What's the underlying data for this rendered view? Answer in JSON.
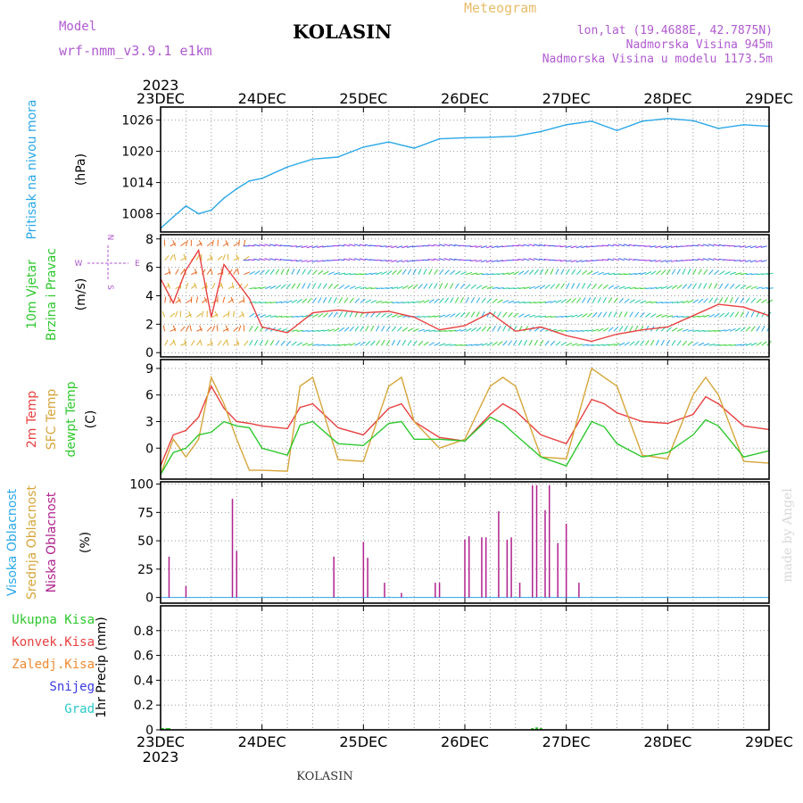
{
  "header": {
    "model_label": "Model",
    "model_name": "wrf-nmm_v3.9.1 e1km",
    "station": "KOLASIN",
    "product": "Meteogram",
    "coords": "lon,lat (19.4688E, 42.7875N)",
    "elevation": "Nadmorska Visina 945m",
    "model_elevation": "Nadmorska Visina u modelu 1173.5m",
    "year": "2023",
    "footer_station": "KOLASIN",
    "credit": "made by Angel"
  },
  "dates": [
    "23DEC",
    "24DEC",
    "25DEC",
    "26DEC",
    "27DEC",
    "28DEC",
    "29DEC"
  ],
  "chart_data": [
    {
      "type": "line",
      "panel": "pressure",
      "ylabel": [
        "Pritisak na nivou mora",
        "(hPa)"
      ],
      "ylim": [
        1004.5,
        1028.5
      ],
      "yticks": [
        1008,
        1014,
        1020,
        1026
      ],
      "grid": true,
      "color": "#2aa8e8",
      "series": [
        {
          "x": [
            0,
            3,
            6,
            9,
            12,
            15,
            18,
            21,
            24,
            30,
            36,
            42,
            48,
            54,
            60,
            66,
            72,
            78,
            84,
            90,
            96,
            102,
            108,
            114,
            120,
            126,
            132,
            138,
            144
          ],
          "values": [
            1005.2,
            1007.4,
            1009.5,
            1008.0,
            1008.7,
            1011.0,
            1012.8,
            1014.3,
            1014.8,
            1017.0,
            1018.5,
            1018.9,
            1020.8,
            1021.8,
            1020.6,
            1022.4,
            1022.6,
            1022.7,
            1022.9,
            1023.8,
            1025.1,
            1025.8,
            1024.0,
            1025.8,
            1026.3,
            1025.9,
            1024.4,
            1025.1,
            1024.8
          ]
        }
      ]
    },
    {
      "type": "line",
      "panel": "wind",
      "ylabel": [
        "10m Vjetar",
        "Brzina i Pravac",
        "(m/s)"
      ],
      "ylim": [
        -0.3,
        8.3
      ],
      "yticks": [
        0,
        2,
        4,
        6,
        8
      ],
      "grid": true,
      "compass": [
        "W",
        "E",
        "N",
        "S"
      ],
      "series": [
        {
          "name": "speed",
          "color": "#e84040",
          "x": [
            0,
            3,
            6,
            9,
            12,
            15,
            18,
            21,
            24,
            30,
            36,
            42,
            48,
            54,
            60,
            66,
            72,
            78,
            84,
            90,
            96,
            102,
            108,
            114,
            120,
            126,
            132,
            138,
            144
          ],
          "values": [
            5.2,
            3.5,
            5.8,
            7.2,
            2.5,
            6.2,
            5.0,
            3.8,
            1.8,
            1.4,
            2.8,
            3.0,
            2.8,
            2.9,
            2.5,
            1.6,
            1.9,
            2.8,
            1.5,
            1.8,
            1.2,
            0.8,
            1.3,
            1.6,
            1.8,
            2.6,
            3.4,
            3.2,
            2.6
          ]
        }
      ]
    },
    {
      "type": "line",
      "panel": "temperature",
      "ylabel": [
        "2m Temp",
        "SFC Temp",
        "dewpt Temp",
        "(C)"
      ],
      "ylim": [
        -3.5,
        10
      ],
      "yticks": [
        0,
        3,
        6,
        9
      ],
      "grid": true,
      "x": [
        0,
        3,
        6,
        9,
        12,
        15,
        18,
        21,
        24,
        30,
        33,
        36,
        42,
        48,
        54,
        57,
        60,
        66,
        72,
        78,
        81,
        84,
        90,
        96,
        102,
        105,
        108,
        114,
        120,
        126,
        129,
        132,
        138,
        144
      ],
      "series": [
        {
          "name": "2m Temp",
          "color": "#e84040",
          "values": [
            -2.0,
            1.5,
            2.0,
            3.5,
            7.0,
            4.5,
            3.0,
            2.8,
            2.5,
            2.2,
            4.6,
            5.0,
            2.3,
            1.5,
            4.5,
            5.0,
            3.0,
            1.2,
            0.8,
            3.8,
            5.0,
            4.2,
            1.5,
            0.5,
            5.5,
            5.0,
            4.0,
            3.0,
            2.8,
            3.8,
            5.8,
            5.0,
            2.5,
            2.1
          ]
        },
        {
          "name": "SFC Temp",
          "color": "#d6a53a",
          "values": [
            -3.0,
            1.0,
            -1.0,
            1.0,
            8.0,
            5.0,
            1.0,
            -2.5,
            -2.5,
            -2.6,
            7.0,
            8.0,
            -1.3,
            -1.5,
            7.0,
            8.0,
            3.0,
            0.0,
            1.0,
            7.0,
            8.0,
            7.0,
            -1.0,
            -1.2,
            9.0,
            8.0,
            7.0,
            -0.8,
            -1.2,
            6.0,
            8.0,
            6.0,
            -1.5,
            -1.7
          ]
        },
        {
          "name": "dewpt Temp",
          "color": "#2ec82e",
          "values": [
            -3.0,
            -0.5,
            0.0,
            1.5,
            1.8,
            3.0,
            2.5,
            2.3,
            0.0,
            -0.8,
            2.6,
            3.0,
            0.5,
            0.3,
            2.8,
            3.0,
            1.0,
            1.0,
            0.8,
            3.5,
            2.8,
            1.5,
            -1.0,
            -2.0,
            3.0,
            2.4,
            0.5,
            -1.0,
            -0.5,
            1.5,
            3.2,
            2.5,
            -1.0,
            -0.3
          ]
        }
      ]
    },
    {
      "type": "bar",
      "panel": "cloud",
      "ylabel": [
        "Visoka Oblacnost",
        "Srednja Oblacnost",
        "Niska Oblacnost",
        "(%)"
      ],
      "ylim": [
        -5,
        102
      ],
      "yticks": [
        0,
        25,
        50,
        75,
        100
      ],
      "grid": true,
      "color": "#b0228e",
      "x": [
        2,
        6,
        17,
        18,
        41,
        48,
        49,
        53,
        57,
        65,
        66,
        72,
        73,
        76,
        77,
        80,
        82,
        83,
        85,
        88,
        89,
        91,
        92,
        94,
        96,
        99,
        103
      ],
      "values": [
        36,
        10,
        87,
        41,
        36,
        49,
        35,
        13,
        4,
        13,
        13,
        51,
        54,
        53,
        53,
        76,
        51,
        53,
        13,
        99,
        99,
        77,
        99,
        48,
        65,
        13,
        0
      ]
    },
    {
      "type": "bar",
      "panel": "precip",
      "ylabel": [
        "1hr Precip (mm)"
      ],
      "legend": [
        "Ukupna Kisa",
        "Konvek.Kisa",
        "Zaledj.Kisa",
        "Snijeg",
        "Grad"
      ],
      "legend_colors": [
        "#2ec82e",
        "#e84040",
        "#f08a30",
        "#3a3ae0",
        "#2ac8c8"
      ],
      "ylim": [
        0,
        1.0
      ],
      "yticks": [
        0,
        0.2,
        0.4,
        0.6,
        0.8
      ],
      "grid": true,
      "color": "#2ec82e",
      "x": [
        0.5,
        1.5,
        2.0,
        88,
        89,
        90
      ],
      "values": [
        0.015,
        0.015,
        0.01,
        0.01,
        0.02,
        0.01
      ]
    }
  ]
}
